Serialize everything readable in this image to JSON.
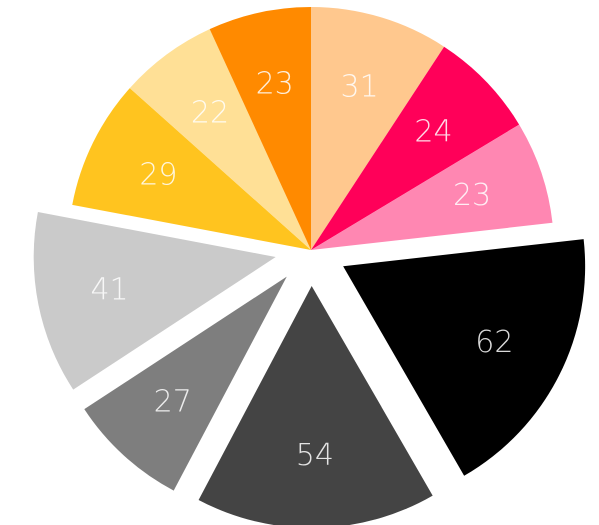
{
  "chart_data": {
    "type": "pie",
    "title": "",
    "values": [
      31,
      24,
      23,
      62,
      54,
      27,
      41,
      29,
      22,
      23
    ],
    "labels": [
      "31",
      "24",
      "23",
      "62",
      "54",
      "27",
      "41",
      "29",
      "22",
      "23"
    ],
    "colors": [
      "#FFC88E",
      "#FF0059",
      "#FF87B2",
      "#000000",
      "#444444",
      "#7E7E7E",
      "#CACACA",
      "#FFC41F",
      "#FFE096",
      "#FF8A00"
    ],
    "exploded": [
      false,
      false,
      false,
      true,
      true,
      true,
      true,
      false,
      false,
      false
    ],
    "start_angle_deg": 0,
    "direction": "clockwise",
    "legend": "none"
  }
}
